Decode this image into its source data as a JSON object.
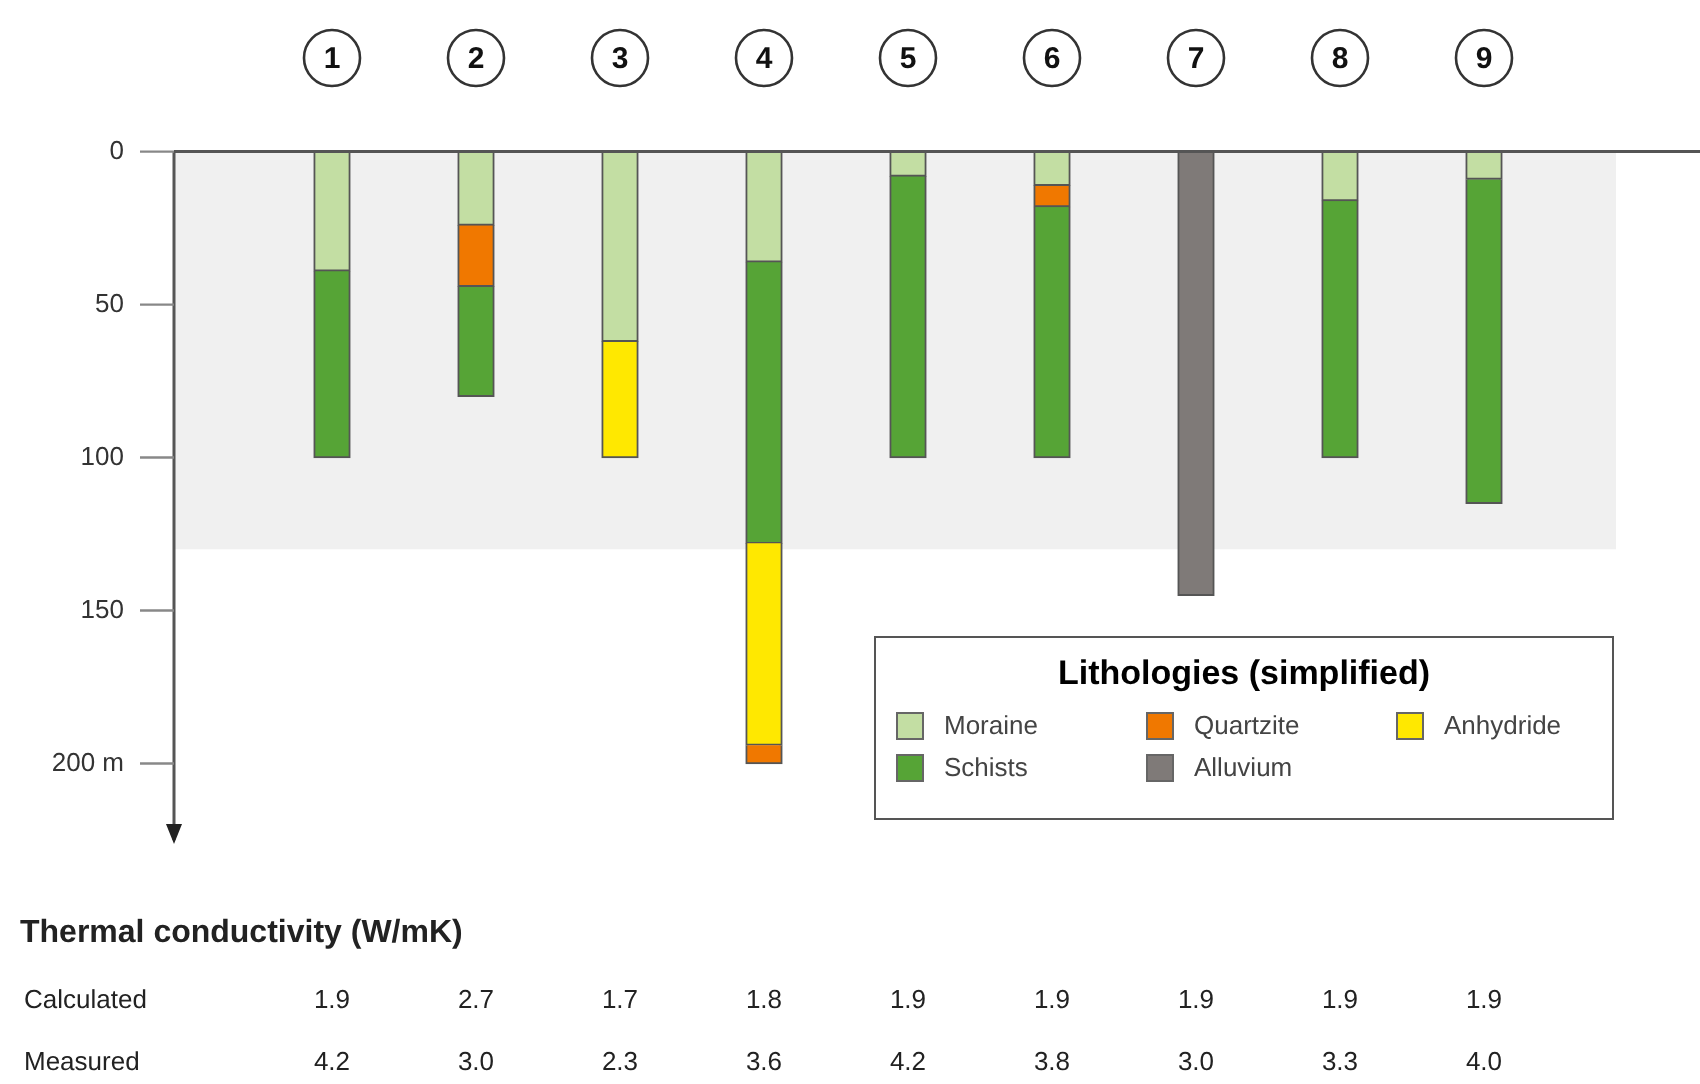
{
  "chart_data": {
    "type": "bar",
    "categories": [
      "1",
      "2",
      "3",
      "4",
      "5",
      "6",
      "7",
      "8",
      "9"
    ],
    "ylim": [
      225,
      0
    ],
    "yticks": [
      0,
      50,
      100,
      150,
      {
        "value": 200,
        "label": "200 m"
      }
    ],
    "legend": "bottom right",
    "legend_title": "Lithologies (simplified)",
    "grid": false,
    "bands": [
      {
        "axis": "y",
        "from": 0,
        "to": 130,
        "color": "#f0f0f0"
      }
    ],
    "series": [
      {
        "name": "Moraine",
        "color": "#c3dea3",
        "values": [
          39,
          24,
          62,
          36,
          8,
          11,
          null,
          16,
          9
        ],
        "base": [
          0,
          0,
          0,
          0,
          0,
          0,
          null,
          0,
          0
        ]
      },
      {
        "name": "Quartzite",
        "color": "#f07800",
        "values": [
          null,
          20,
          null,
          6,
          null,
          7,
          null,
          null,
          null
        ],
        "base": [
          null,
          24,
          null,
          194,
          null,
          11,
          null,
          null,
          null
        ]
      },
      {
        "name": "Anhydride",
        "color": "#ffe800",
        "values": [
          null,
          null,
          38,
          66,
          null,
          null,
          null,
          null,
          null
        ],
        "base": [
          null,
          null,
          62,
          128,
          null,
          null,
          null,
          null,
          null
        ]
      },
      {
        "name": "Schists",
        "color": "#56a436",
        "values": [
          61,
          36,
          null,
          92,
          92,
          82,
          null,
          84,
          106
        ],
        "base": [
          39,
          44,
          null,
          36,
          8,
          18,
          null,
          16,
          9
        ]
      },
      {
        "name": "Alluvium",
        "color": "#7f7a78",
        "values": [
          null,
          null,
          null,
          null,
          null,
          null,
          145,
          null,
          null
        ],
        "base": [
          null,
          null,
          null,
          null,
          null,
          null,
          0,
          null,
          null
        ]
      }
    ],
    "annotations": [
      "Thermal conductivity (W/mK)",
      "Calculated",
      "1.9",
      "2.7",
      "1.7",
      "1.8",
      "1.9",
      "1.9",
      "1.9",
      "1.9",
      "1.9",
      "Measured",
      "4.2",
      "3.0",
      "2.3",
      "3.6",
      "4.2",
      "3.8",
      "3.0",
      "3.3",
      "4.0"
    ]
  }
}
